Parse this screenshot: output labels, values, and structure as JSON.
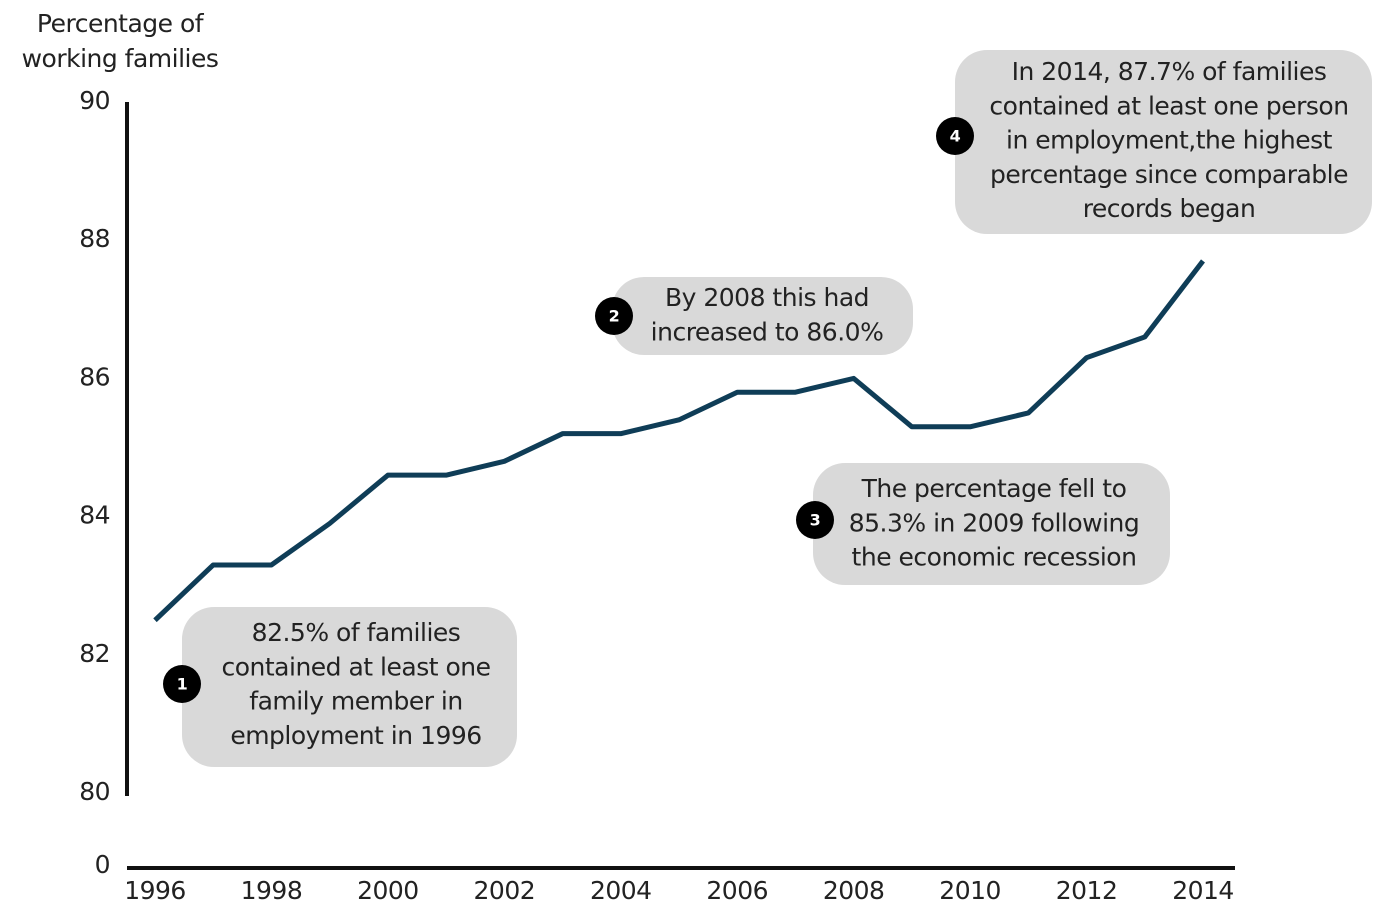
{
  "chart_data": {
    "type": "line",
    "y_title_lines": [
      "Percentage of",
      "working families"
    ],
    "x": [
      1996,
      1997,
      1998,
      1999,
      2000,
      2001,
      2002,
      2003,
      2004,
      2005,
      2006,
      2007,
      2008,
      2009,
      2010,
      2011,
      2012,
      2013,
      2014
    ],
    "series": [
      {
        "color": "#0f3d57",
        "values": [
          82.5,
          83.3,
          83.3,
          83.9,
          84.6,
          84.6,
          84.8,
          85.2,
          85.2,
          85.4,
          85.8,
          85.8,
          86.0,
          85.3,
          85.3,
          85.5,
          86.3,
          86.6,
          87.7
        ]
      }
    ],
    "xlim": [
      1996,
      2014
    ],
    "xticks": [
      1996,
      1998,
      2000,
      2002,
      2004,
      2006,
      2008,
      2010,
      2012,
      2014
    ],
    "ylim": [
      80,
      90
    ],
    "yticks": [
      80,
      82,
      84,
      86,
      88,
      90
    ],
    "y_baseline_tick": 0,
    "annotations": [
      {
        "number": 1,
        "lines": [
          "82.5% of families",
          "contained at least one",
          "family member in",
          "employment in 1996"
        ]
      },
      {
        "number": 2,
        "lines": [
          "By 2008 this had",
          "increased to 86.0%"
        ]
      },
      {
        "number": 3,
        "lines": [
          "The percentage fell to",
          "85.3% in 2009 following",
          "the economic recession"
        ]
      },
      {
        "number": 4,
        "lines": [
          "In 2014, 87.7% of families",
          "contained at least one person",
          "in employment,the highest",
          "percentage since comparable",
          "records began"
        ]
      }
    ]
  }
}
